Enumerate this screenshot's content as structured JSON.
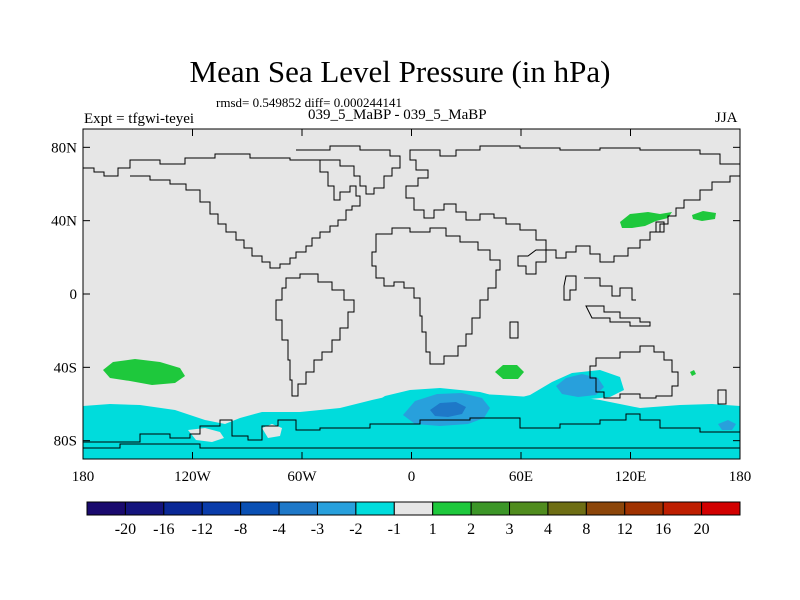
{
  "title": "Mean Sea Level Pressure (in hPa)",
  "subtitle": "rmsd= 0.549852 diff= 0.000244141",
  "experiment": "Expt = tfgwi-teyei",
  "case_label": "039_5_MaBP - 039_5_MaBP",
  "season": "JJA",
  "colors": {
    "background_field": "#e6e6e6",
    "coastline": "#000000"
  },
  "chart_data": {
    "type": "heatmap",
    "projection": "cylindrical equidistant",
    "title": "Mean Sea Level Pressure (in hPa)",
    "units": "hPa",
    "lon_range": [
      -180,
      180
    ],
    "lat_range": [
      -90,
      90
    ],
    "x_ticks": [
      {
        "value": -180,
        "label": "180"
      },
      {
        "value": -120,
        "label": "120W"
      },
      {
        "value": -60,
        "label": "60W"
      },
      {
        "value": 0,
        "label": "0"
      },
      {
        "value": 60,
        "label": "60E"
      },
      {
        "value": 120,
        "label": "120E"
      },
      {
        "value": 180,
        "label": "180"
      }
    ],
    "y_ticks": [
      {
        "value": 80,
        "label": "80N"
      },
      {
        "value": 40,
        "label": "40N"
      },
      {
        "value": 0,
        "label": "0"
      },
      {
        "value": -40,
        "label": "40S"
      },
      {
        "value": -80,
        "label": "80S"
      }
    ],
    "colorbar": {
      "labels": [
        "-20",
        "-16",
        "-12",
        "-8",
        "-4",
        "-3",
        "-2",
        "-1",
        "1",
        "2",
        "3",
        "4",
        "8",
        "12",
        "16",
        "20"
      ],
      "colors": [
        "#1a0a6e",
        "#14147d",
        "#0a2896",
        "#0a3caa",
        "#0a50b4",
        "#1e78c8",
        "#28a0dc",
        "#00dcdc",
        "#e6e6e6",
        "#1ec83c",
        "#3c9628",
        "#508c1e",
        "#6e6e14",
        "#8c460a",
        "#a03200",
        "#be1e00",
        "#d20000"
      ]
    },
    "regions": [
      {
        "name": "southern-ocean-band",
        "level": "-1",
        "lon": [
          -180,
          180
        ],
        "lat": [
          -90,
          -60
        ]
      },
      {
        "name": "south-atlantic-indian-band",
        "level": "-1",
        "lon": [
          -20,
          90
        ],
        "lat": [
          -75,
          -50
        ]
      },
      {
        "name": "south-atlantic-low",
        "level": "-2",
        "lon": [
          -2,
          45
        ],
        "lat": [
          -75,
          -55
        ]
      },
      {
        "name": "south-atlantic-low-core",
        "level": "-3",
        "lon": [
          12,
          33
        ],
        "lat": [
          -68,
          -60
        ]
      },
      {
        "name": "indian-ocean-low",
        "level": "-2",
        "lon": [
          78,
          108
        ],
        "lat": [
          -58,
          -45
        ]
      },
      {
        "name": "south-pacific-high",
        "level": "2",
        "lon": [
          -163,
          -129
        ],
        "lat": [
          -47,
          -36
        ]
      },
      {
        "name": "south-indian-high",
        "level": "2",
        "lon": [
          45,
          60
        ],
        "lat": [
          -46,
          -38
        ]
      },
      {
        "name": "north-pacific-high-west",
        "level": "2",
        "lon": [
          114,
          150
        ],
        "lat": [
          32,
          46
        ]
      },
      {
        "name": "north-pacific-high-east",
        "level": "2",
        "lon": [
          155,
          166
        ],
        "lat": [
          40,
          44
        ]
      }
    ]
  }
}
